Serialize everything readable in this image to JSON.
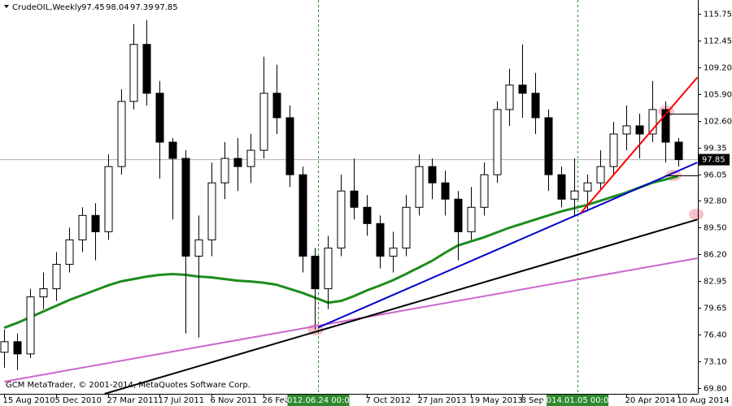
{
  "chart_data": {
    "type": "candlestick",
    "header": {
      "symbol": "CrudeOIL,Weekly",
      "open": 97.45,
      "high": 98.04,
      "low": 97.39,
      "close": 97.85
    },
    "footer": "GCM MetaTrader, © 2001-2014, MetaQuotes Software Corp.",
    "xlim": [
      "2010-08-06",
      "2014-09-22"
    ],
    "ylim": [
      69.1,
      117.45
    ],
    "yticks": [
      115.75,
      112.45,
      {
        "value": 109.2,
        "label": "109.20"
      },
      {
        "value": 105.9,
        "label": "105.90"
      },
      {
        "value": 102.6,
        "label": "102.60"
      },
      99.35,
      96.05,
      {
        "value": 92.8,
        "label": "92.80"
      },
      {
        "value": 89.5,
        "label": "89.50"
      },
      {
        "value": 86.2,
        "label": "86.20"
      },
      82.95,
      79.65,
      {
        "value": 76.4,
        "label": "76.40"
      },
      {
        "value": 73.1,
        "label": "73.10"
      },
      {
        "value": 69.8,
        "label": "69.80"
      }
    ],
    "xticks": [
      {
        "value": "2010-08-15",
        "label": "15 Aug 2010"
      },
      {
        "value": "2010-12-05",
        "label": "5 Dec 2010"
      },
      {
        "value": "2011-03-27",
        "label": "27 Mar 2011"
      },
      {
        "value": "2011-07-17",
        "label": "17 Jul 2011"
      },
      {
        "value": "2011-11-06",
        "label": "6 Nov 2011"
      },
      {
        "value": "2012-02-26",
        "label": "26 Feb"
      },
      {
        "value": "2012-10-07",
        "label": "7 Oct 2012"
      },
      {
        "value": "2013-01-27",
        "label": "27 Jan 2013"
      },
      {
        "value": "2013-05-19",
        "label": "19 May 2013"
      },
      {
        "value": "2013-09-08",
        "label": "8 Sep"
      },
      {
        "value": "2014-04-20",
        "label": "20 Apr 2014"
      },
      {
        "value": "2014-08-10",
        "label": "10 Aug 2014"
      }
    ],
    "markers": [
      {
        "date": "2012-06-24",
        "label": "2012.06.24 00:00",
        "color": "#2f8a2f"
      },
      {
        "date": "2014-01-05",
        "label": "2014.01.05 00:00",
        "color": "#2f8a2f"
      }
    ],
    "x": [
      "2010-08-15",
      "2010-09-12",
      "2010-10-10",
      "2010-11-07",
      "2010-12-05",
      "2011-01-02",
      "2011-01-30",
      "2011-02-27",
      "2011-03-27",
      "2011-04-24",
      "2011-05-22",
      "2011-06-19",
      "2011-07-17",
      "2011-08-14",
      "2011-09-11",
      "2011-10-09",
      "2011-11-06",
      "2011-12-04",
      "2012-01-01",
      "2012-01-29",
      "2012-02-26",
      "2012-03-25",
      "2012-04-22",
      "2012-05-20",
      "2012-06-17",
      "2012-07-15",
      "2012-08-12",
      "2012-09-09",
      "2012-10-07",
      "2012-11-04",
      "2012-12-02",
      "2012-12-30",
      "2013-01-27",
      "2013-02-24",
      "2013-03-24",
      "2013-04-21",
      "2013-05-19",
      "2013-06-16",
      "2013-07-14",
      "2013-08-11",
      "2013-09-08",
      "2013-10-06",
      "2013-11-03",
      "2013-12-01",
      "2013-12-29",
      "2014-01-26",
      "2014-02-23",
      "2014-03-23",
      "2014-04-20",
      "2014-05-18",
      "2014-06-15",
      "2014-07-13",
      "2014-08-10"
    ],
    "open": [
      74.2,
      75.5,
      74.0,
      81.0,
      82.0,
      85.0,
      88.0,
      91.0,
      89.0,
      97.0,
      105.0,
      112.0,
      106.0,
      100.0,
      98.0,
      86.0,
      88.0,
      95.0,
      98.0,
      97.0,
      99.0,
      106.0,
      103.0,
      96.0,
      86.0,
      82.0,
      87.0,
      94.0,
      92.0,
      90.0,
      86.0,
      87.0,
      92.0,
      97.0,
      95.0,
      93.0,
      89.0,
      92.0,
      96.0,
      104.0,
      107.0,
      106.0,
      103.0,
      96.0,
      93.0,
      94.0,
      95.0,
      97.0,
      101.0,
      102.0,
      101.0,
      104.0,
      100.0
    ],
    "high": [
      77.0,
      76.5,
      82.0,
      84.0,
      86.5,
      89.5,
      92.0,
      92.5,
      98.5,
      106.5,
      114.5,
      115.0,
      107.5,
      100.5,
      99.0,
      91.0,
      97.5,
      100.0,
      100.5,
      101.0,
      110.5,
      109.5,
      104.5,
      97.0,
      87.0,
      88.5,
      96.0,
      98.0,
      93.5,
      91.0,
      89.0,
      93.5,
      98.5,
      98.0,
      96.5,
      94.0,
      94.5,
      97.5,
      105.0,
      109.0,
      112.0,
      108.5,
      104.0,
      97.0,
      98.0,
      96.0,
      99.0,
      102.5,
      104.5,
      103.5,
      107.5,
      105.0,
      100.5
    ],
    "low": [
      72.3,
      72.0,
      73.5,
      79.5,
      80.5,
      84.0,
      86.5,
      85.5,
      88.0,
      96.0,
      104.0,
      104.5,
      95.5,
      90.5,
      76.5,
      76.0,
      86.0,
      93.0,
      94.0,
      95.0,
      98.0,
      101.0,
      94.5,
      84.0,
      77.0,
      79.5,
      86.0,
      90.5,
      88.5,
      84.5,
      84.0,
      86.0,
      91.0,
      93.0,
      91.0,
      85.5,
      88.0,
      91.0,
      95.0,
      102.0,
      103.0,
      101.0,
      94.0,
      92.0,
      91.0,
      91.5,
      94.0,
      96.0,
      99.0,
      98.0,
      100.0,
      97.5,
      97.0
    ],
    "close": [
      75.5,
      74.0,
      81.0,
      82.0,
      85.0,
      88.0,
      91.0,
      89.0,
      97.0,
      105.0,
      112.0,
      106.0,
      100.0,
      98.0,
      86.0,
      88.0,
      95.0,
      98.0,
      97.0,
      99.0,
      106.0,
      103.0,
      96.0,
      86.0,
      82.0,
      87.0,
      94.0,
      92.0,
      90.0,
      86.0,
      87.0,
      92.0,
      97.0,
      95.0,
      93.0,
      89.0,
      92.0,
      96.0,
      104.0,
      107.0,
      106.0,
      103.0,
      96.0,
      93.0,
      94.0,
      95.0,
      97.0,
      101.0,
      102.0,
      101.0,
      104.0,
      100.0,
      97.85
    ],
    "overlays": [
      {
        "color": "#1e8c1e",
        "values": [
          77.2,
          77.8,
          78.5,
          79.2,
          79.9,
          80.6,
          81.2,
          81.8,
          82.4,
          82.9,
          83.2,
          83.5,
          83.7,
          83.8,
          83.7,
          83.5,
          83.4,
          83.2,
          83.0,
          82.9,
          82.75,
          82.5,
          82.0,
          81.5,
          80.9,
          80.3,
          80.5,
          81.1,
          81.8,
          82.4,
          83.05,
          83.8,
          84.6,
          85.4,
          86.4,
          87.3,
          87.8,
          88.3,
          88.9,
          89.5,
          90.0,
          90.5,
          91.0,
          91.5,
          91.9,
          92.3,
          92.8,
          93.3,
          93.8,
          94.4,
          95.0,
          95.4,
          95.8
        ]
      }
    ],
    "trendlines": [
      {
        "color": "#cc66cc",
        "x": [
          "2010-08-15",
          "2014-09-21"
        ],
        "values": [
          70.6,
          85.75
        ]
      },
      {
        "color": "#000000",
        "x": [
          "2011-03-20",
          "2014-09-21"
        ],
        "values": [
          69.1,
          90.5
        ]
      },
      {
        "color": "#0000cc",
        "x": [
          "2012-06-24",
          "2014-09-21"
        ],
        "values": [
          77.25,
          97.5
        ]
      },
      {
        "color": "#ff0000",
        "x": [
          "2014-01-12",
          "2014-09-21"
        ],
        "values": [
          91.3,
          107.95
        ]
      }
    ],
    "levels": [
      {
        "value": 103.5,
        "from": "2014-07-06"
      },
      {
        "value": 95.9,
        "from": "2014-07-13"
      }
    ],
    "last_price": 97.85
  }
}
